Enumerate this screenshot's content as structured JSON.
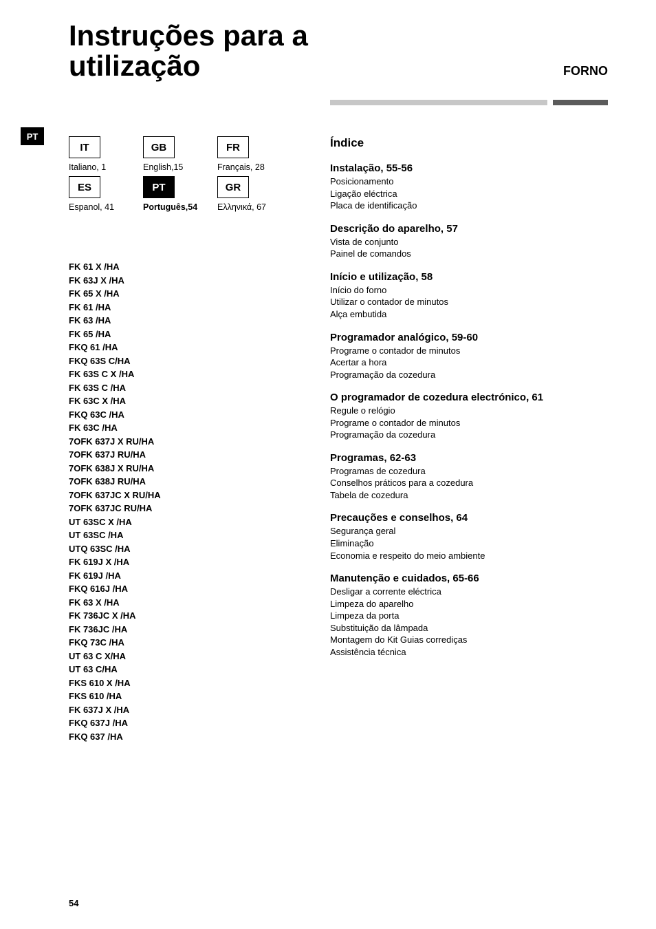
{
  "title_line1": "Instruções para a",
  "title_line2": "utilização",
  "product": "FORNO",
  "side_tab": "PT",
  "languages": [
    {
      "code": "IT",
      "label": "Italiano,  1",
      "active": false,
      "bold": false
    },
    {
      "code": "GB",
      "label": "English,15",
      "active": false,
      "bold": false
    },
    {
      "code": "FR",
      "label": "Français,  28",
      "active": false,
      "bold": false
    },
    {
      "code": "ES",
      "label": "Espanol,  41",
      "active": false,
      "bold": false
    },
    {
      "code": "PT",
      "label": "Português,54",
      "active": true,
      "bold": true
    },
    {
      "code": "GR",
      "label": "Ελληνικά,  67",
      "active": false,
      "bold": false
    }
  ],
  "models": [
    "FK 61 X /HA",
    "FK 63J X /HA",
    "FK 65 X /HA",
    "FK 61 /HA",
    "FK 63 /HA",
    "FK 65 /HA",
    "FKQ 61 /HA",
    "FKQ 63S C/HA",
    "FK 63S C X /HA",
    "FK 63S C /HA",
    "FK 63C X /HA",
    "FKQ 63C /HA",
    "FK 63C /HA",
    "7OFK 637J X RU/HA",
    "7OFK 637J RU/HA",
    "7OFK 638J X RU/HA",
    "7OFK 638J RU/HA",
    "7OFK 637JC X RU/HA",
    "7OFK 637JC RU/HA",
    "UT 63SC X /HA",
    "UT 63SC /HA",
    "UTQ 63SC /HA",
    "FK 619J X /HA",
    "FK 619J /HA",
    "FKQ 616J /HA",
    "FK 63 X /HA",
    "FK 736JC X /HA",
    "FK 736JC /HA",
    "FKQ 73C /HA",
    "UT 63 C X/HA",
    "UT 63 C/HA",
    "FKS 610 X /HA",
    "FKS 610 /HA",
    "FK 637J X /HA",
    "FKQ 637J /HA",
    "FKQ 637 /HA"
  ],
  "indice_title": "Índice",
  "sections": [
    {
      "head": "Instalação, 55-56",
      "lines": [
        "Posicionamento",
        "Ligação eléctrica",
        "Placa de identificação"
      ]
    },
    {
      "head": "Descrição do aparelho, 57",
      "lines": [
        "Vista de conjunto",
        "Painel de comandos"
      ]
    },
    {
      "head": "Início e utilização, 58",
      "lines": [
        "Início do forno",
        "Utilizar o contador de minutos",
        "Alça embutida"
      ]
    },
    {
      "head": "Programador analógico, 59-60",
      "lines": [
        "Programe o contador de minutos",
        "Acertar a hora",
        "Programação da cozedura"
      ]
    },
    {
      "head": "O programador de cozedura electrónico, 61",
      "lines": [
        "Regule o relógio",
        "Programe o contador de minutos",
        "Programação da cozedura"
      ]
    },
    {
      "head": "Programas, 62-63",
      "lines": [
        "Programas de cozedura",
        "Conselhos práticos para a cozedura",
        "Tabela de cozedura"
      ]
    },
    {
      "head": "Precauções e conselhos, 64",
      "lines": [
        "Segurança geral",
        "Eliminação",
        "Economia e respeito do meio ambiente"
      ]
    },
    {
      "head": "Manutenção e cuidados, 65-66",
      "lines": [
        "Desligar a corrente eléctrica",
        "Limpeza do aparelho",
        "Limpeza da porta",
        "Substituição da lâmpada",
        "Montagem do Kit Guias corrediças",
        "Assistência técnica"
      ]
    }
  ],
  "page_number": "54"
}
